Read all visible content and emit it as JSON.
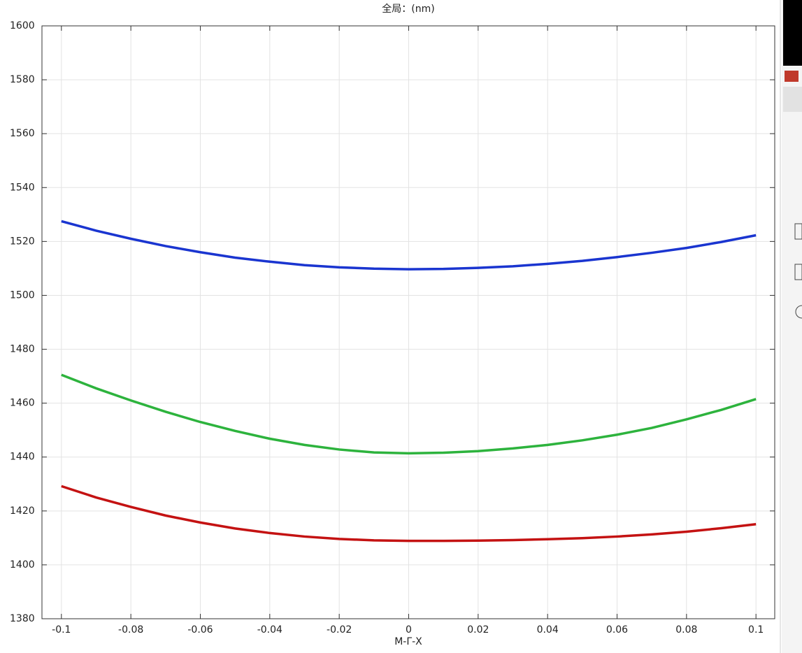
{
  "chart_data": {
    "type": "line",
    "title": "全局：(nm)",
    "x_label": "M-Γ-X",
    "x": [
      -0.1,
      -0.09,
      -0.08,
      -0.07,
      -0.06,
      -0.05,
      -0.04,
      -0.03,
      -0.02,
      -0.01,
      0,
      0.01,
      0.02,
      0.03,
      0.04,
      0.05,
      0.06,
      0.07,
      0.08,
      0.09,
      0.1
    ],
    "series": [
      {
        "color": "#1a35d0",
        "values": [
          1527.5,
          1524,
          1521,
          1518.3,
          1516,
          1514,
          1512.5,
          1511.2,
          1510.4,
          1509.9,
          1509.7,
          1509.8,
          1510.2,
          1510.8,
          1511.7,
          1512.8,
          1514.2,
          1515.8,
          1517.6,
          1519.8,
          1522.3
        ]
      },
      {
        "color": "#2db33d",
        "values": [
          1470.5,
          1465.5,
          1461,
          1456.8,
          1453,
          1449.7,
          1446.8,
          1444.5,
          1442.8,
          1441.7,
          1441.4,
          1441.6,
          1442.2,
          1443.2,
          1444.5,
          1446.2,
          1448.3,
          1450.8,
          1454,
          1457.5,
          1461.5
        ]
      },
      {
        "color": "#c41212",
        "values": [
          1429.2,
          1425,
          1421.5,
          1418.3,
          1415.7,
          1413.5,
          1411.8,
          1410.5,
          1409.6,
          1409.1,
          1408.9,
          1408.9,
          1409,
          1409.2,
          1409.5,
          1409.9,
          1410.5,
          1411.3,
          1412.3,
          1413.6,
          1415.1
        ]
      }
    ],
    "xlim": [
      -0.1056,
      0.1054
    ],
    "xticks": [
      -0.1,
      -0.08,
      -0.06,
      -0.04,
      -0.02,
      0,
      0.02,
      0.04,
      0.06,
      0.08,
      0.1
    ],
    "ylim": [
      1380,
      1600
    ],
    "yticks": [
      1380,
      1400,
      1420,
      1440,
      1460,
      1480,
      1500,
      1520,
      1540,
      1560,
      1580,
      1600
    ],
    "grid": true
  }
}
